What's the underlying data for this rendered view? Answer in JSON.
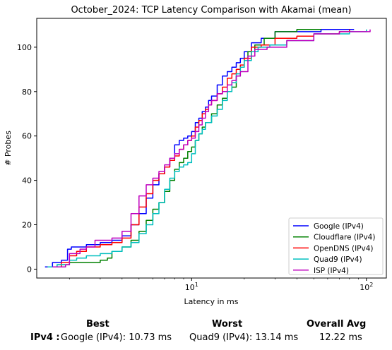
{
  "chart_data": {
    "type": "line",
    "title": "October_2024: TCP Latency Comparison with Akamai (mean)",
    "xlabel": "Latency in ms",
    "ylabel": "# Probes",
    "xscale": "log",
    "xlim": [
      1.3,
      130
    ],
    "ylim": [
      -4,
      113
    ],
    "xticks": [
      {
        "value": 10,
        "label": "10^1"
      },
      {
        "value": 100,
        "label": "10^2"
      }
    ],
    "yticks": [
      0,
      20,
      40,
      60,
      80,
      100
    ],
    "grid": false,
    "legend_position": "lower-right",
    "series": [
      {
        "name": "Google (IPv4)",
        "color": "#0000ff",
        "points": [
          [
            1.45,
            1
          ],
          [
            1.6,
            3
          ],
          [
            1.8,
            4
          ],
          [
            1.95,
            9
          ],
          [
            2.05,
            10
          ],
          [
            2.5,
            11
          ],
          [
            3.0,
            12
          ],
          [
            3.5,
            13
          ],
          [
            4.0,
            15
          ],
          [
            4.5,
            20
          ],
          [
            5.0,
            25
          ],
          [
            5.5,
            32
          ],
          [
            6.0,
            38
          ],
          [
            6.5,
            43
          ],
          [
            7.0,
            46
          ],
          [
            7.5,
            50
          ],
          [
            8.0,
            56
          ],
          [
            8.5,
            58
          ],
          [
            9.0,
            59
          ],
          [
            9.5,
            60
          ],
          [
            10.0,
            62
          ],
          [
            10.5,
            66
          ],
          [
            11.0,
            68
          ],
          [
            11.5,
            71
          ],
          [
            12.0,
            73
          ],
          [
            12.5,
            76
          ],
          [
            13.0,
            78
          ],
          [
            14.0,
            83
          ],
          [
            15.0,
            87
          ],
          [
            16.0,
            89
          ],
          [
            17.0,
            91
          ],
          [
            18.0,
            93
          ],
          [
            19.0,
            95
          ],
          [
            20.0,
            98
          ],
          [
            22.0,
            102
          ],
          [
            25.0,
            104
          ],
          [
            30.0,
            107
          ],
          [
            40.0,
            107
          ],
          [
            55.0,
            108
          ],
          [
            85.0,
            108
          ]
        ]
      },
      {
        "name": "Cloudflare (IPv4)",
        "color": "#008000",
        "points": [
          [
            1.5,
            1
          ],
          [
            1.7,
            2
          ],
          [
            2.0,
            3
          ],
          [
            2.5,
            3
          ],
          [
            3.0,
            4
          ],
          [
            3.3,
            5
          ],
          [
            3.5,
            8
          ],
          [
            4.0,
            10
          ],
          [
            4.5,
            13
          ],
          [
            5.0,
            17
          ],
          [
            5.5,
            22
          ],
          [
            6.0,
            27
          ],
          [
            6.5,
            30
          ],
          [
            7.0,
            35
          ],
          [
            7.5,
            40
          ],
          [
            8.0,
            45
          ],
          [
            8.5,
            48
          ],
          [
            9.0,
            50
          ],
          [
            9.5,
            53
          ],
          [
            10.0,
            55
          ],
          [
            10.5,
            58
          ],
          [
            11.0,
            61
          ],
          [
            11.5,
            64
          ],
          [
            12.0,
            66
          ],
          [
            13.0,
            70
          ],
          [
            14.0,
            74
          ],
          [
            15.0,
            77
          ],
          [
            16.0,
            80
          ],
          [
            17.0,
            82
          ],
          [
            18.0,
            87
          ],
          [
            19.0,
            91
          ],
          [
            20.0,
            95
          ],
          [
            21.0,
            98
          ],
          [
            23.0,
            101
          ],
          [
            26.0,
            104
          ],
          [
            30.0,
            107
          ],
          [
            40.0,
            108
          ],
          [
            55.0,
            108
          ]
        ]
      },
      {
        "name": "OpenDNS (IPv4)",
        "color": "#ff0000",
        "points": [
          [
            1.5,
            1
          ],
          [
            1.8,
            3
          ],
          [
            2.0,
            6
          ],
          [
            2.2,
            8
          ],
          [
            2.5,
            10
          ],
          [
            3.0,
            11
          ],
          [
            3.5,
            12
          ],
          [
            4.0,
            14
          ],
          [
            4.5,
            20
          ],
          [
            5.0,
            28
          ],
          [
            5.5,
            34
          ],
          [
            6.0,
            40
          ],
          [
            6.5,
            43
          ],
          [
            7.0,
            46
          ],
          [
            7.5,
            49
          ],
          [
            8.0,
            51
          ],
          [
            8.5,
            54
          ],
          [
            9.0,
            56
          ],
          [
            9.5,
            58
          ],
          [
            10.0,
            60
          ],
          [
            10.5,
            64
          ],
          [
            11.0,
            67
          ],
          [
            11.5,
            70
          ],
          [
            12.0,
            72
          ],
          [
            12.5,
            74
          ],
          [
            13.0,
            76
          ],
          [
            14.0,
            79
          ],
          [
            15.0,
            82
          ],
          [
            16.0,
            86
          ],
          [
            17.0,
            88
          ],
          [
            18.0,
            90
          ],
          [
            19.0,
            92
          ],
          [
            20.0,
            95
          ],
          [
            22.0,
            100
          ],
          [
            25.0,
            101
          ],
          [
            30.0,
            104
          ],
          [
            40.0,
            105
          ],
          [
            50.0,
            106
          ],
          [
            70.0,
            107
          ],
          [
            80.0,
            108
          ]
        ]
      },
      {
        "name": "Quad9 (IPv4)",
        "color": "#00bfbf",
        "points": [
          [
            1.5,
            1
          ],
          [
            1.7,
            2
          ],
          [
            2.0,
            4
          ],
          [
            2.2,
            5
          ],
          [
            2.5,
            6
          ],
          [
            3.0,
            7
          ],
          [
            3.5,
            8
          ],
          [
            4.0,
            10
          ],
          [
            4.5,
            12
          ],
          [
            5.0,
            16
          ],
          [
            5.5,
            20
          ],
          [
            6.0,
            25
          ],
          [
            6.5,
            30
          ],
          [
            7.0,
            36
          ],
          [
            7.5,
            41
          ],
          [
            8.0,
            44
          ],
          [
            8.5,
            46
          ],
          [
            9.0,
            47
          ],
          [
            9.5,
            48
          ],
          [
            10.0,
            52
          ],
          [
            10.5,
            58
          ],
          [
            11.0,
            61
          ],
          [
            11.5,
            63
          ],
          [
            12.0,
            66
          ],
          [
            13.0,
            69
          ],
          [
            14.0,
            72
          ],
          [
            15.0,
            76
          ],
          [
            16.0,
            80
          ],
          [
            17.0,
            84
          ],
          [
            18.0,
            88
          ],
          [
            19.0,
            91
          ],
          [
            20.0,
            94
          ],
          [
            22.0,
            98
          ],
          [
            24.0,
            100
          ],
          [
            28.0,
            101
          ],
          [
            35.0,
            103
          ],
          [
            50.0,
            106
          ],
          [
            80.0,
            107
          ],
          [
            100.0,
            108
          ]
        ]
      },
      {
        "name": "ISP (IPv4)",
        "color": "#bf00bf",
        "points": [
          [
            1.6,
            1
          ],
          [
            1.9,
            2
          ],
          [
            2.0,
            7
          ],
          [
            2.3,
            9
          ],
          [
            2.5,
            10
          ],
          [
            2.8,
            13
          ],
          [
            3.5,
            14
          ],
          [
            4.0,
            17
          ],
          [
            4.5,
            25
          ],
          [
            5.0,
            33
          ],
          [
            5.5,
            38
          ],
          [
            6.0,
            41
          ],
          [
            6.5,
            44
          ],
          [
            7.0,
            47
          ],
          [
            7.5,
            50
          ],
          [
            8.0,
            52
          ],
          [
            8.5,
            54
          ],
          [
            9.0,
            56
          ],
          [
            9.5,
            58
          ],
          [
            10.0,
            59
          ],
          [
            10.5,
            62
          ],
          [
            11.0,
            65
          ],
          [
            11.5,
            68
          ],
          [
            12.0,
            71
          ],
          [
            12.5,
            74
          ],
          [
            13.0,
            76
          ],
          [
            14.0,
            79
          ],
          [
            15.0,
            80
          ],
          [
            16.0,
            83
          ],
          [
            17.0,
            85
          ],
          [
            18.0,
            87
          ],
          [
            19.0,
            89
          ],
          [
            21.0,
            96
          ],
          [
            23.0,
            99
          ],
          [
            27.0,
            100
          ],
          [
            35.0,
            103
          ],
          [
            50.0,
            106
          ],
          [
            70.0,
            107
          ],
          [
            105.0,
            108
          ]
        ]
      }
    ]
  },
  "footer": {
    "best_header": "Best",
    "worst_header": "Worst",
    "avg_header": "Overall Avg",
    "row_label": "IPv4 :",
    "best_value": "Google (IPv4): 10.73 ms",
    "worst_value": "Quad9 (IPv4): 13.14 ms",
    "avg_value": "12.22 ms"
  }
}
